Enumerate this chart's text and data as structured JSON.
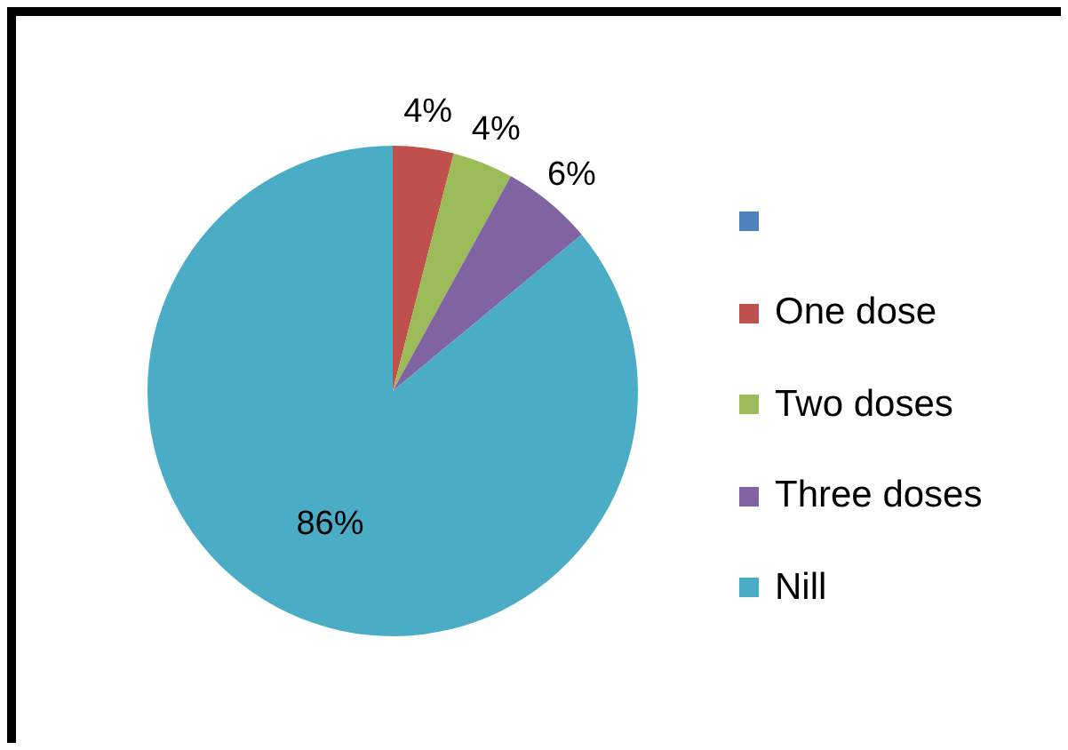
{
  "chart_data": {
    "type": "pie",
    "categories": [
      null,
      "One dose",
      "Two doses",
      "Three doses",
      "Nill"
    ],
    "values": [
      0,
      4,
      4,
      6,
      86
    ],
    "colors": [
      "#4f81bd",
      "#c0504d",
      "#9bbb59",
      "#8064a2",
      "#4bacc6"
    ],
    "value_labels": [
      null,
      "4%",
      "4%",
      "6%",
      "86%"
    ],
    "legend": "right"
  }
}
